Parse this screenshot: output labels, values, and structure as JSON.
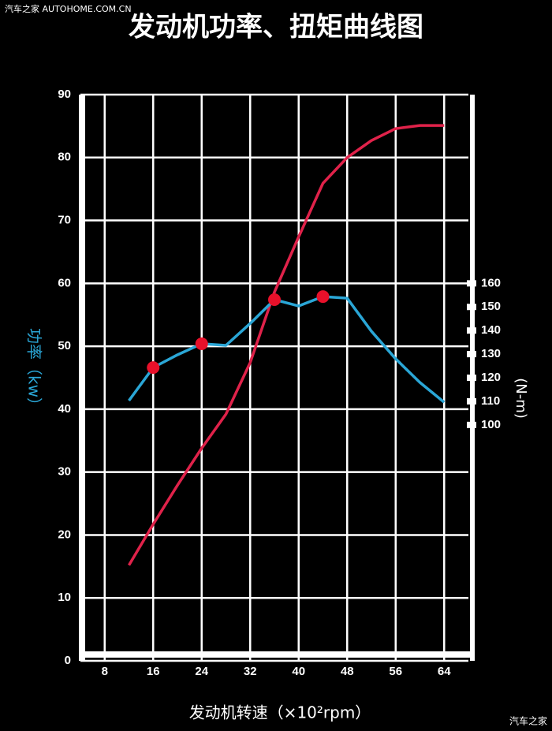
{
  "watermark": "汽车之家 AUTOHOME.COM.CN",
  "watermark_corner": "汽车之家",
  "chart_data": {
    "type": "line",
    "title": "发动机功率、扭矩曲线图",
    "x_label": "发动机转速（×10²rpm）",
    "y_label": "功率（kw）",
    "y2_label": "(N-m)",
    "x": [
      12,
      16,
      20,
      24,
      28,
      32,
      36,
      40,
      44,
      48,
      52,
      56,
      60,
      64
    ],
    "xlim": [
      4,
      68
    ],
    "xticks": [
      8,
      16,
      24,
      32,
      40,
      48,
      56,
      64
    ],
    "ylim": [
      0,
      90
    ],
    "yticks": [
      0,
      10,
      20,
      30,
      40,
      50,
      60,
      70,
      80,
      90
    ],
    "y2lim": [
      0,
      240
    ],
    "y2ticks": [
      100,
      110,
      120,
      130,
      140,
      150,
      160
    ],
    "grid": true,
    "series": [
      {
        "color": "#e0224a",
        "values": [
          15.2,
          21.7,
          27.9,
          33.8,
          39.2,
          47.4,
          58.6,
          67.4,
          75.9,
          80,
          82.7,
          84.6,
          85.1,
          85.1
        ]
      },
      {
        "color": "#2aa6d6",
        "axis": "y2",
        "values": [
          110.3,
          124.3,
          129.7,
          134.4,
          133.7,
          143.0,
          153.1,
          150.4,
          154.4,
          153.7,
          139.7,
          128.0,
          118.0,
          109.6
        ]
      }
    ],
    "highlight_points": {
      "color": "#e8102a",
      "axis": "y2",
      "x": [
        16,
        24,
        36,
        44
      ],
      "values": [
        124.3,
        134.4,
        153.1,
        154.4
      ]
    }
  }
}
